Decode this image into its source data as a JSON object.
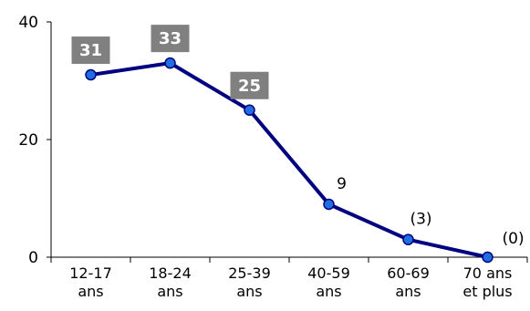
{
  "chart_data": {
    "type": "line",
    "categories": [
      [
        "12-17",
        "ans"
      ],
      [
        "18-24",
        "ans"
      ],
      [
        "25-39",
        "ans"
      ],
      [
        "40-59",
        "ans"
      ],
      [
        "60-69",
        "ans"
      ],
      [
        "70 ans",
        "et plus"
      ]
    ],
    "values": [
      31,
      33,
      25,
      9,
      3,
      0
    ],
    "data_labels": [
      "31",
      "33",
      "25",
      "9",
      "(3)",
      "(0)"
    ],
    "data_label_boxed": [
      true,
      true,
      true,
      false,
      false,
      false
    ],
    "yticks": [
      0,
      20,
      40
    ],
    "ylim": [
      0,
      40
    ],
    "grid": false,
    "colors": {
      "line": "#000080",
      "marker_fill": "#1f6fe0",
      "marker_stroke": "#000080",
      "label_box": "#808080",
      "axis": "#000000"
    }
  }
}
